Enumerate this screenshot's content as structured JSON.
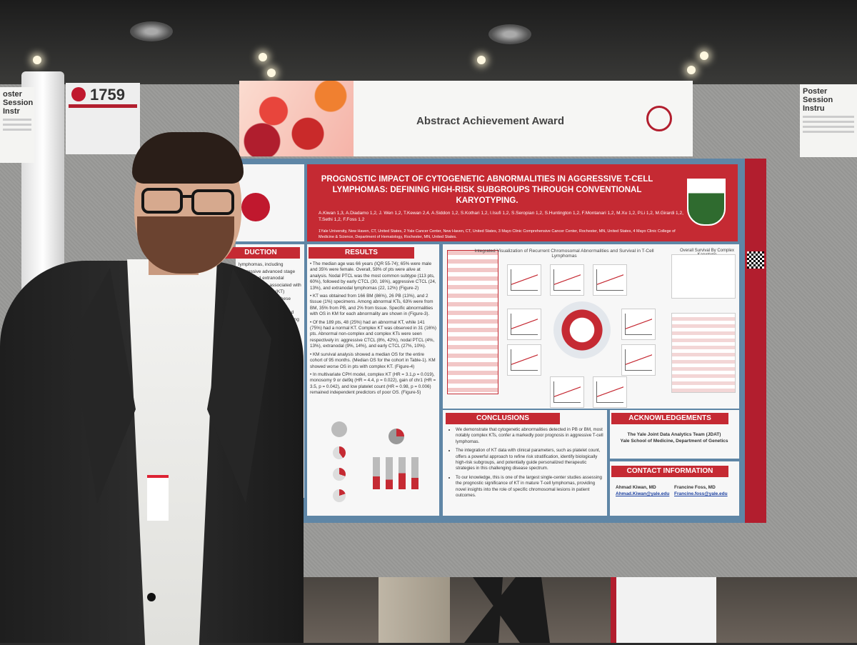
{
  "board_number": "1759",
  "award_banner": {
    "title": "Abstract Achievement Award"
  },
  "side_notice_right": {
    "title": "Poster Session Instru"
  },
  "side_notice_left": {
    "title": "oster Session Instr"
  },
  "poster": {
    "title": "PROGNOSTIC IMPACT OF CYTOGENETIC ABNORMALITIES IN AGGRESSIVE T-CELL LYMPHOMAS: DEFINING HIGH-RISK SUBGROUPS THROUGH CONVENTIONAL KARYOTYPING.",
    "authors": "A.Kiwan 1,3, A.Diadamo 1,2, J. Wen 1,2, T.Kewan 2,4, A.Siddon 1,2, S.Kothari 1,2, I.Isufi 1,2, S.Seropian 1,2, S.Huntington 1,2, F.Montanari 1,2, M.Xu 1,2, P.Li 1,2, M.Girardi 1,2, T.Sethi 1,2, F.Foss 1,2",
    "affiliations": "1Yale University, New Haven, CT, United States, 2 Yale Cancer Center, New Haven, CT, United States, 3 Mayo Clinic Comprehensive Cancer Center, Rochester, MN, United States, 4 Mayo Clinic College of Medicine & Science, Department of Hematology, Rochester, MN, United States.",
    "intro": {
      "heading": "DUCTION",
      "text": "lymphomas, including aggressive advanced stage CTCL, and extranodal mphomas, are associated with poor le karyotype (KT) abnormalities are n these diseases, limited data significance. We evaluated including complex ions, along with verall survival"
    },
    "results": {
      "heading": "RESULTS",
      "paragraphs": [
        "• The median age was 66 years (IQR 55-74); 65% were male and 35% were female. Overall, 58% of pts were alive at analysis. Nodal PTCL was the most common subtype (113 pts, 60%), followed by early CTCL (30, 16%), aggressive CTCL (24, 13%), and extranodal lymphomas (22, 12%) (Figure-2)",
        "• KT was obtained from 166 BM (86%), 26 PB (13%), and 2 tissue (1%) specimens. Among abnormal KTs, 63% were from BM, 35% from PB, and 2% from tissue. Specific abnormalities with OS in KM for each abnormality are shown in (Figure-3).",
        "• Of the 189 pts, 48 (25%) had an abnormal KT, while 141 (75%) had a normal KT. Complex KT was observed in 31 (16%) pts. Abnormal non-complex and complex KTs were seen respectively in: aggressive CTCL (8%, 42%), nodal PTCL (4%, 13%), extranodal (9%, 14%), and early CTCL (27%, 10%).",
        "• KM survival analysis showed a median OS for the entire cohort of 95 months. (Median OS for the cohort in Table-1). KM showed worse OS in pts with complex KT. (Figure-4)",
        "• In multivariate CPH model, complex KT (HR = 3.1,p = 0.019), monosomy 9 or del9q (HR = 4.4, p = 0.022), gain of chr1 (HR = 3.5, p = 0.042), and low platelet count (HR = 0.98, p = 0.006) remained independent predictors of poor OS. (Figure-5)"
      ]
    },
    "figure": {
      "title": "Integrated Visualization of Recurrent Chromosomal Abnormalities and Survival in T-Cell Lymphomas",
      "survival_title": "Overall Survival By Complex Karyotype"
    },
    "conclusions": {
      "heading": "CONCLUSIONS",
      "items": [
        "We demonstrate that cytogenetic abnormalities detected in PB or BM, most notably complex KTs, confer a markedly poor prognosis in aggressive T-cell lymphomas.",
        "The integration of KT data with clinical parameters, such as platelet count, offers a powerful approach to refine risk stratification, identify biologically high-risk subgroups, and potentially guide personalized therapeutic strategies in this challenging disease spectrum.",
        "To our knowledge, this is one of the largest single-center studies assessing the prognostic significance of KT in mature T-cell lymphomas, providing novel insights into the role of specific chromosomal lesions in patient outcomes."
      ]
    },
    "acknowledgements": {
      "heading": "ACKNOWLEDGEMENTS",
      "line1": "The Yale Joint Data Analytics Team (JDAT)",
      "line2": "Yale School of Medicine, Department of Genetics"
    },
    "contact": {
      "heading": "CONTACT INFORMATION",
      "name1": "Ahmad Kiwan, MD",
      "email1": "Ahmad.Kiwan@yale.edu",
      "name2": "Francine Foss, MD",
      "email2": "Francine.foss@yale.edu"
    }
  }
}
